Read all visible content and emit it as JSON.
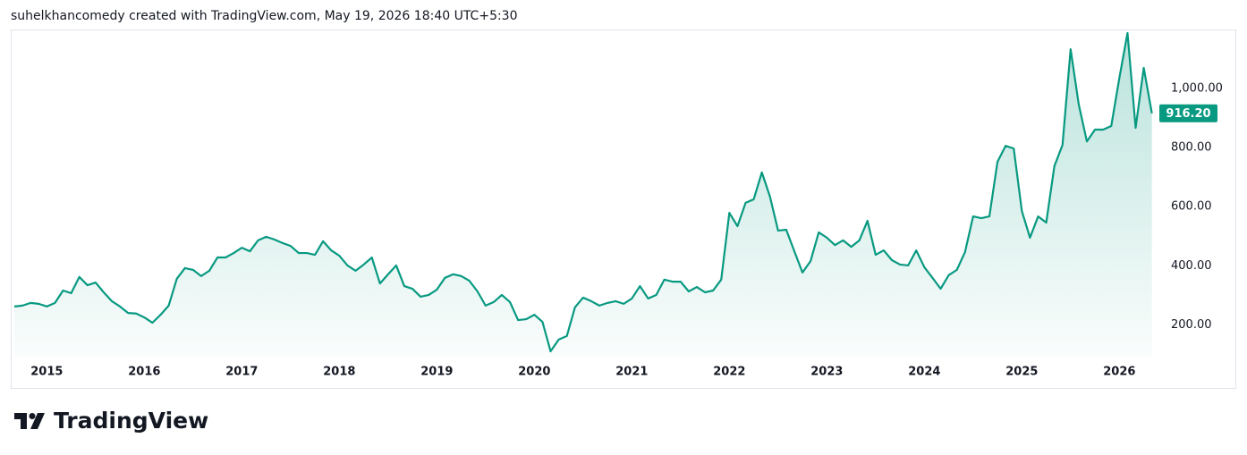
{
  "chart_data": {
    "type": "area",
    "title": "suhelkhancomedy created with TradingView.com, May 19, 2026 18:40 UTC+5:30",
    "color": "#089981",
    "categories": [
      null,
      null,
      null,
      null,
      "2015",
      null,
      null,
      null,
      null,
      null,
      null,
      null,
      null,
      null,
      null,
      null,
      "2016",
      null,
      null,
      null,
      null,
      null,
      null,
      null,
      null,
      null,
      null,
      null,
      "2017",
      null,
      null,
      null,
      null,
      null,
      null,
      null,
      null,
      null,
      null,
      null,
      "2018",
      null,
      null,
      null,
      null,
      null,
      null,
      null,
      null,
      null,
      null,
      null,
      "2019",
      null,
      null,
      null,
      null,
      null,
      null,
      null,
      null,
      null,
      null,
      null,
      "2020",
      null,
      null,
      null,
      null,
      null,
      null,
      null,
      null,
      null,
      null,
      null,
      "2021",
      null,
      null,
      null,
      null,
      null,
      null,
      null,
      null,
      null,
      null,
      null,
      "2022",
      null,
      null,
      null,
      null,
      null,
      null,
      null,
      null,
      null,
      null,
      null,
      "2023",
      null,
      null,
      null,
      null,
      null,
      null,
      null,
      null,
      null,
      null,
      null,
      "2024",
      null,
      null,
      null,
      null,
      null,
      null,
      null,
      null,
      null,
      null,
      null,
      "2025",
      null,
      null,
      null,
      null,
      null,
      null,
      null,
      null,
      null,
      null,
      null,
      "2026",
      null,
      null,
      null,
      null
    ],
    "values": [
      262,
      265,
      274,
      271,
      262,
      274,
      316,
      307,
      362,
      334,
      343,
      310,
      280,
      262,
      240,
      238,
      225,
      207,
      234,
      265,
      356,
      392,
      386,
      365,
      383,
      428,
      428,
      443,
      461,
      449,
      486,
      498,
      489,
      477,
      467,
      443,
      443,
      437,
      483,
      452,
      434,
      401,
      383,
      404,
      428,
      340,
      371,
      401,
      331,
      322,
      295,
      301,
      319,
      359,
      371,
      365,
      349,
      313,
      265,
      277,
      301,
      277,
      216,
      219,
      234,
      210,
      110,
      150,
      162,
      259,
      292,
      280,
      265,
      274,
      280,
      271,
      289,
      331,
      289,
      301,
      353,
      346,
      346,
      313,
      328,
      310,
      316,
      353,
      579,
      534,
      613,
      625,
      716,
      634,
      519,
      522,
      449,
      377,
      416,
      513,
      495,
      470,
      486,
      464,
      486,
      552,
      437,
      452,
      419,
      404,
      401,
      452,
      395,
      359,
      322,
      368,
      386,
      446,
      567,
      561,
      567,
      752,
      806,
      797,
      585,
      495,
      567,
      546,
      737,
      809,
      1133,
      946,
      821,
      861,
      861,
      873,
      1036,
      1188,
      867,
      1070,
      916.2
    ],
    "value_labels": [
      null,
      null,
      null,
      null,
      null,
      null,
      null,
      null,
      null,
      null,
      null,
      null,
      null,
      null,
      null,
      null,
      null,
      null,
      null,
      null,
      null,
      null,
      null,
      null,
      null,
      null,
      null,
      null,
      null,
      null,
      null,
      null,
      null,
      null,
      null,
      null,
      null,
      null,
      null,
      null,
      null,
      null,
      null,
      null,
      null,
      null,
      null,
      null,
      null,
      null,
      null,
      null,
      null,
      null,
      null,
      null,
      null,
      null,
      null,
      null,
      null,
      null,
      null,
      null,
      null,
      null,
      null,
      null,
      null,
      null,
      null,
      null,
      null,
      null,
      null,
      null,
      null,
      null,
      null,
      null,
      null,
      null,
      null,
      null,
      null,
      null,
      null,
      null,
      null,
      null,
      null,
      null,
      null,
      null,
      null,
      null,
      null,
      null,
      null,
      null,
      null,
      null,
      null,
      null,
      null,
      null,
      null,
      null,
      null,
      null,
      null,
      null,
      null,
      null,
      null,
      null,
      null,
      null,
      null,
      null,
      null,
      null,
      null,
      null,
      null,
      null,
      null,
      null,
      null,
      null,
      null,
      null,
      null,
      null,
      null,
      null,
      null,
      null,
      null,
      null,
      "916.20"
    ],
    "ylim": [
      89,
      1200
    ],
    "yticks": [
      {
        "value": 200,
        "label": "200.00"
      },
      {
        "value": 400,
        "label": "400.00"
      },
      {
        "value": 600,
        "label": "600.00"
      },
      {
        "value": 800,
        "label": "800.00"
      },
      {
        "value": 1000,
        "label": "1,000.00"
      }
    ],
    "grid": false
  },
  "footer": {
    "brand": "TradingView"
  }
}
